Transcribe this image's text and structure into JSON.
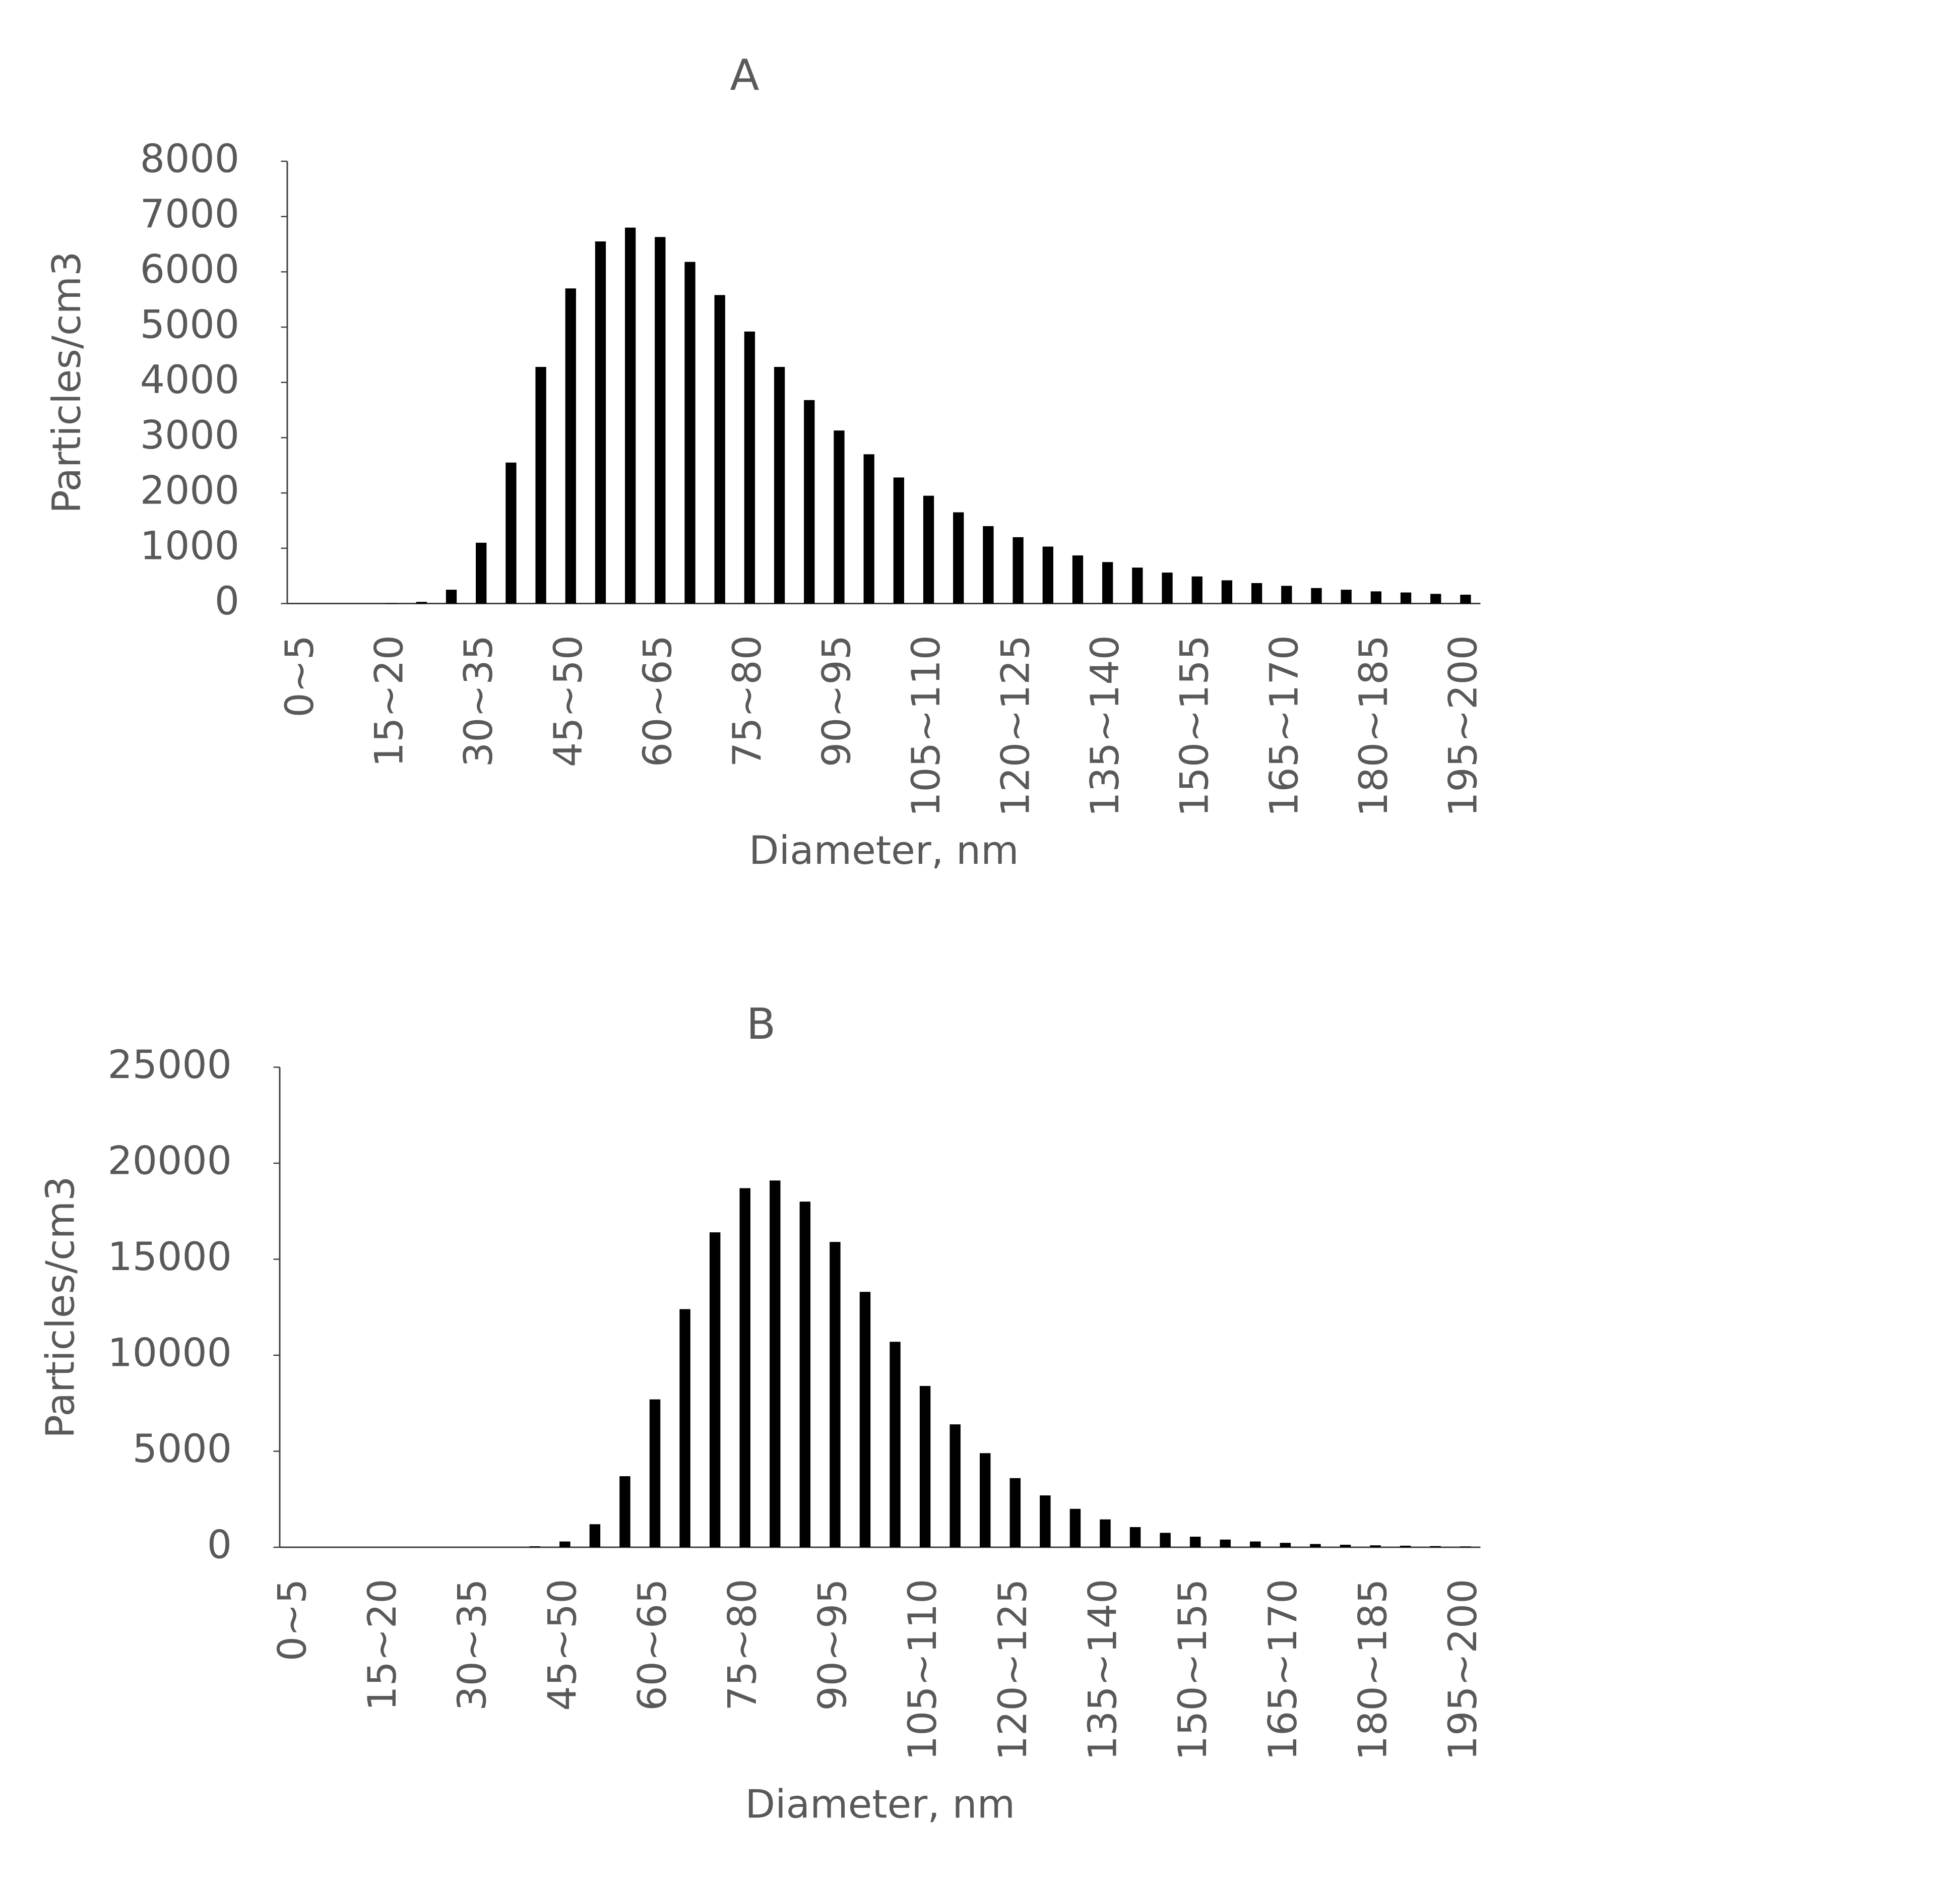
{
  "chart_data": [
    {
      "type": "bar",
      "title": "A",
      "x_label": "Diameter, nm",
      "y_label": "Particles/cm3",
      "color": "#000000",
      "grid": false,
      "categories": [
        "0~5",
        null,
        null,
        "15~20",
        null,
        null,
        "30~35",
        null,
        null,
        "45~50",
        null,
        null,
        "60~65",
        null,
        null,
        "75~80",
        null,
        null,
        "90~95",
        null,
        null,
        "105~110",
        null,
        null,
        "120~125",
        null,
        null,
        "135~140",
        null,
        null,
        "150~155",
        null,
        null,
        "165~170",
        null,
        null,
        "180~185",
        null,
        null,
        "195~200"
      ],
      "values": [
        0,
        0,
        0,
        5,
        30,
        250,
        1100,
        2550,
        4280,
        5700,
        6550,
        6800,
        6630,
        6180,
        5580,
        4920,
        4280,
        3680,
        3130,
        2700,
        2280,
        1950,
        1650,
        1400,
        1200,
        1030,
        870,
        750,
        650,
        560,
        490,
        420,
        370,
        320,
        280,
        250,
        220,
        200,
        175,
        160
      ],
      "ylim": [
        0,
        8000
      ],
      "yticks": [
        0,
        1000,
        2000,
        3000,
        4000,
        5000,
        6000,
        7000,
        8000
      ]
    },
    {
      "type": "bar",
      "title": "B",
      "x_label": "Diameter, nm",
      "y_label": "Particles/cm3",
      "color": "#000000",
      "grid": false,
      "categories": [
        "0~5",
        null,
        null,
        "15~20",
        null,
        null,
        "30~35",
        null,
        null,
        "45~50",
        null,
        null,
        "60~65",
        null,
        null,
        "75~80",
        null,
        null,
        "90~95",
        null,
        null,
        "105~110",
        null,
        null,
        "120~125",
        null,
        null,
        "135~140",
        null,
        null,
        "150~155",
        null,
        null,
        "165~170",
        null,
        null,
        "180~185",
        null,
        null,
        "195~200"
      ],
      "values": [
        0,
        0,
        0,
        0,
        0,
        0,
        0,
        0,
        50,
        300,
        1200,
        3700,
        7700,
        12400,
        16400,
        18700,
        19100,
        18000,
        15900,
        13300,
        10700,
        8400,
        6400,
        4900,
        3600,
        2700,
        2000,
        1450,
        1050,
        750,
        550,
        400,
        300,
        230,
        170,
        130,
        100,
        80,
        60,
        45
      ],
      "ylim": [
        0,
        25000
      ],
      "yticks": [
        0,
        5000,
        10000,
        15000,
        20000,
        25000
      ]
    }
  ]
}
